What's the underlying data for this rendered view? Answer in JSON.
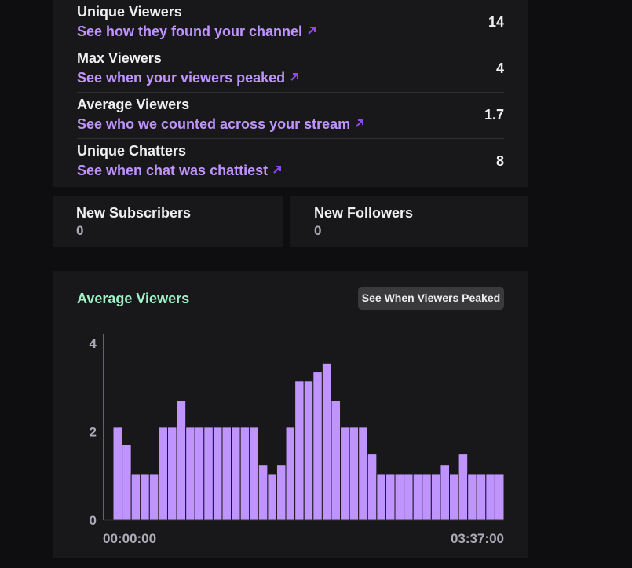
{
  "stats": [
    {
      "title": "Unique Viewers",
      "link": "See how they found your channel",
      "value": "14"
    },
    {
      "title": "Max Viewers",
      "link": "See when your viewers peaked",
      "value": "4"
    },
    {
      "title": "Average Viewers",
      "link": "See who we counted across your stream",
      "value": "1.7"
    },
    {
      "title": "Unique Chatters",
      "link": "See when chat was chattiest",
      "value": "8"
    }
  ],
  "new_subscribers": {
    "title": "New Subscribers",
    "value": "0"
  },
  "new_followers": {
    "title": "New Followers",
    "value": "0"
  },
  "chart_section": {
    "title": "Average Viewers",
    "button_label": "See When Viewers Peaked"
  },
  "colors": {
    "accent": "#bf94ff",
    "chart_title": "#a3f0c8",
    "background": "#0e0e10",
    "card": "#18181b"
  },
  "icons": {
    "link_icon": "arrow-up-right-icon"
  },
  "chart_data": {
    "type": "bar",
    "title": "Average Viewers",
    "x_start_label": "00:00:00",
    "x_end_label": "03:37:00",
    "yticks": [
      0,
      2,
      4
    ],
    "ylim": [
      0,
      4
    ],
    "values": [
      2.1,
      1.7,
      1.05,
      1.05,
      1.05,
      2.1,
      2.1,
      2.7,
      2.1,
      2.1,
      2.1,
      2.1,
      2.1,
      2.1,
      2.1,
      2.1,
      1.25,
      1.05,
      1.25,
      2.1,
      3.15,
      3.15,
      3.35,
      3.55,
      2.7,
      2.1,
      2.1,
      2.1,
      1.5,
      1.05,
      1.05,
      1.05,
      1.05,
      1.05,
      1.05,
      1.05,
      1.25,
      1.05,
      1.5,
      1.05,
      1.05,
      1.05,
      1.05
    ],
    "grid": false,
    "legend": "none"
  }
}
